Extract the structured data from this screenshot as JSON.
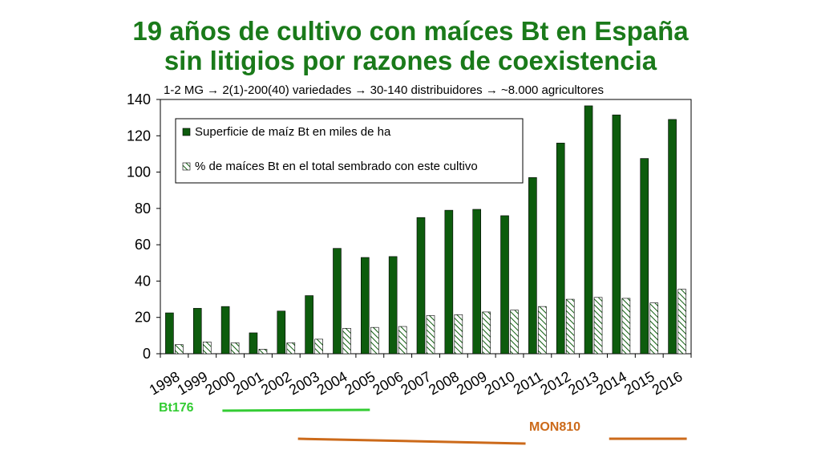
{
  "title": {
    "line1": "19 años de cultivo con maíces Bt en España",
    "line2": "sin litigios por razones de coexistencia"
  },
  "subtitle": "1-2 MG → 2(1)-200(40) variedades → 30-140 distribuidores → ~8.000 agricultores",
  "colors": {
    "title": "#1a7a1a",
    "bar_solid": "#0d5c0d",
    "bar_hatch": "#0d5c0d",
    "bt176": "#33cc33",
    "mon810": "#cc6a1a"
  },
  "chart_data": {
    "type": "bar",
    "categories": [
      "1998",
      "1999",
      "2000",
      "2001",
      "2002",
      "2003",
      "2004",
      "2005",
      "2006",
      "2007",
      "2008",
      "2009",
      "2010",
      "2011",
      "2012",
      "2013",
      "2014",
      "2015",
      "2016"
    ],
    "series": [
      {
        "name": "Superficie de maíz Bt en miles de ha",
        "style": "solid",
        "values": [
          22.5,
          25,
          26,
          11.5,
          23.5,
          32,
          58,
          53,
          53.5,
          75,
          79,
          79.5,
          76,
          97,
          116,
          136.5,
          131.5,
          107.5,
          129
        ]
      },
      {
        "name": "% de maíces Bt en el total sembrado con este cultivo",
        "style": "hatched",
        "values": [
          5,
          6.5,
          6,
          2.5,
          6,
          8,
          14,
          14.5,
          15,
          21,
          21.5,
          23,
          24,
          26,
          30,
          31,
          30.5,
          28,
          35.5
        ]
      }
    ],
    "ylim": [
      0,
      140
    ],
    "yticks": [
      "0",
      "20",
      "40",
      "60",
      "80",
      "100",
      "120",
      "140"
    ],
    "grid": false,
    "legend_position": "top-left"
  },
  "varieties": {
    "bt176": {
      "label": "Bt176",
      "from": "1998",
      "to": "2005"
    },
    "mon810": {
      "label": "MON810",
      "from": "2003",
      "to": "2010",
      "from2": "2015",
      "to2": "2016"
    }
  }
}
